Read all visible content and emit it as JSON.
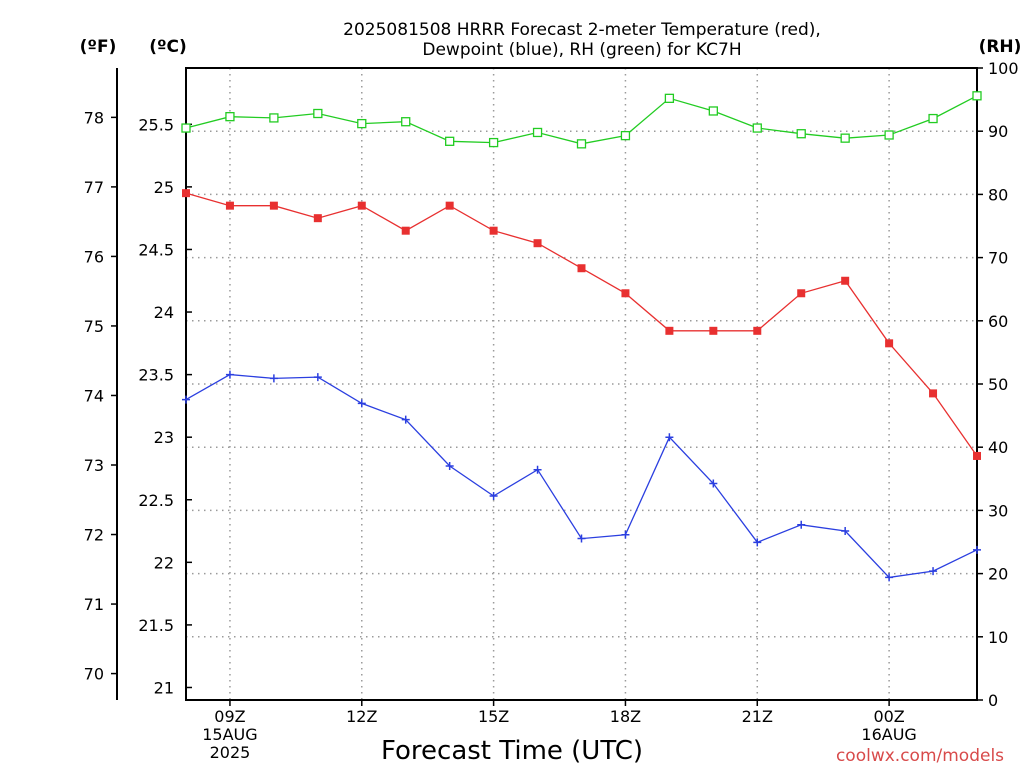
{
  "chart_data": {
    "type": "line",
    "title_lines": [
      "2025081508 HRRR Forecast 2-meter Temperature (red),",
      "Dewpoint (blue), RH (green) for KC7H"
    ],
    "xlabel": "Forecast Time (UTC)",
    "credit": "coolwx.com/models",
    "grid": true,
    "x_hours_utc": [
      8,
      9,
      10,
      11,
      12,
      13,
      14,
      15,
      16,
      17,
      18,
      19,
      20,
      21,
      22,
      23,
      24,
      25,
      26
    ],
    "xlim": [
      8,
      26
    ],
    "x_ticks": [
      {
        "hour": 9,
        "lines": [
          "09Z",
          "15AUG",
          "2025"
        ]
      },
      {
        "hour": 12,
        "lines": [
          "12Z"
        ]
      },
      {
        "hour": 15,
        "lines": [
          "15Z"
        ]
      },
      {
        "hour": 18,
        "lines": [
          "18Z"
        ]
      },
      {
        "hour": 21,
        "lines": [
          "21Z"
        ]
      },
      {
        "hour": 24,
        "lines": [
          "00Z",
          "16AUG"
        ]
      }
    ],
    "axes": {
      "fahrenheit": {
        "unit_label": "(ºF)",
        "ticks": [
          70,
          71,
          72,
          73,
          74,
          75,
          76,
          77,
          78
        ]
      },
      "celsius": {
        "unit_label": "(ºC)",
        "range": [
          20.9,
          25.95
        ],
        "ticks": [
          21,
          21.5,
          22,
          22.5,
          23,
          23.5,
          24,
          24.5,
          25,
          25.5
        ]
      },
      "rh": {
        "unit_label": "(RH)",
        "range": [
          0,
          100
        ],
        "ticks": [
          0,
          10,
          20,
          30,
          40,
          50,
          60,
          70,
          80,
          90,
          100
        ]
      }
    },
    "series": [
      {
        "name": "Temperature",
        "axis": "celsius",
        "color": "#e83030",
        "marker": "filled-square",
        "values": [
          24.95,
          24.85,
          24.85,
          24.75,
          24.85,
          24.65,
          24.85,
          24.65,
          24.55,
          24.35,
          24.15,
          23.85,
          23.85,
          23.85,
          24.15,
          24.25,
          23.75,
          23.35,
          22.85
        ]
      },
      {
        "name": "Dewpoint",
        "axis": "celsius",
        "color": "#2b3fe0",
        "marker": "plus",
        "values": [
          23.3,
          23.5,
          23.47,
          23.48,
          23.27,
          23.14,
          22.77,
          22.53,
          22.74,
          22.19,
          22.22,
          23.0,
          22.63,
          22.16,
          22.3,
          22.25,
          21.88,
          21.93,
          22.1
        ]
      },
      {
        "name": "RH",
        "axis": "rh",
        "color": "#22cc22",
        "marker": "open-square",
        "values": [
          90.5,
          92.3,
          92.1,
          92.8,
          91.2,
          91.5,
          88.4,
          88.2,
          89.8,
          88.0,
          89.3,
          95.2,
          93.2,
          90.5,
          89.6,
          88.9,
          89.4,
          92.0,
          95.6
        ]
      }
    ]
  }
}
